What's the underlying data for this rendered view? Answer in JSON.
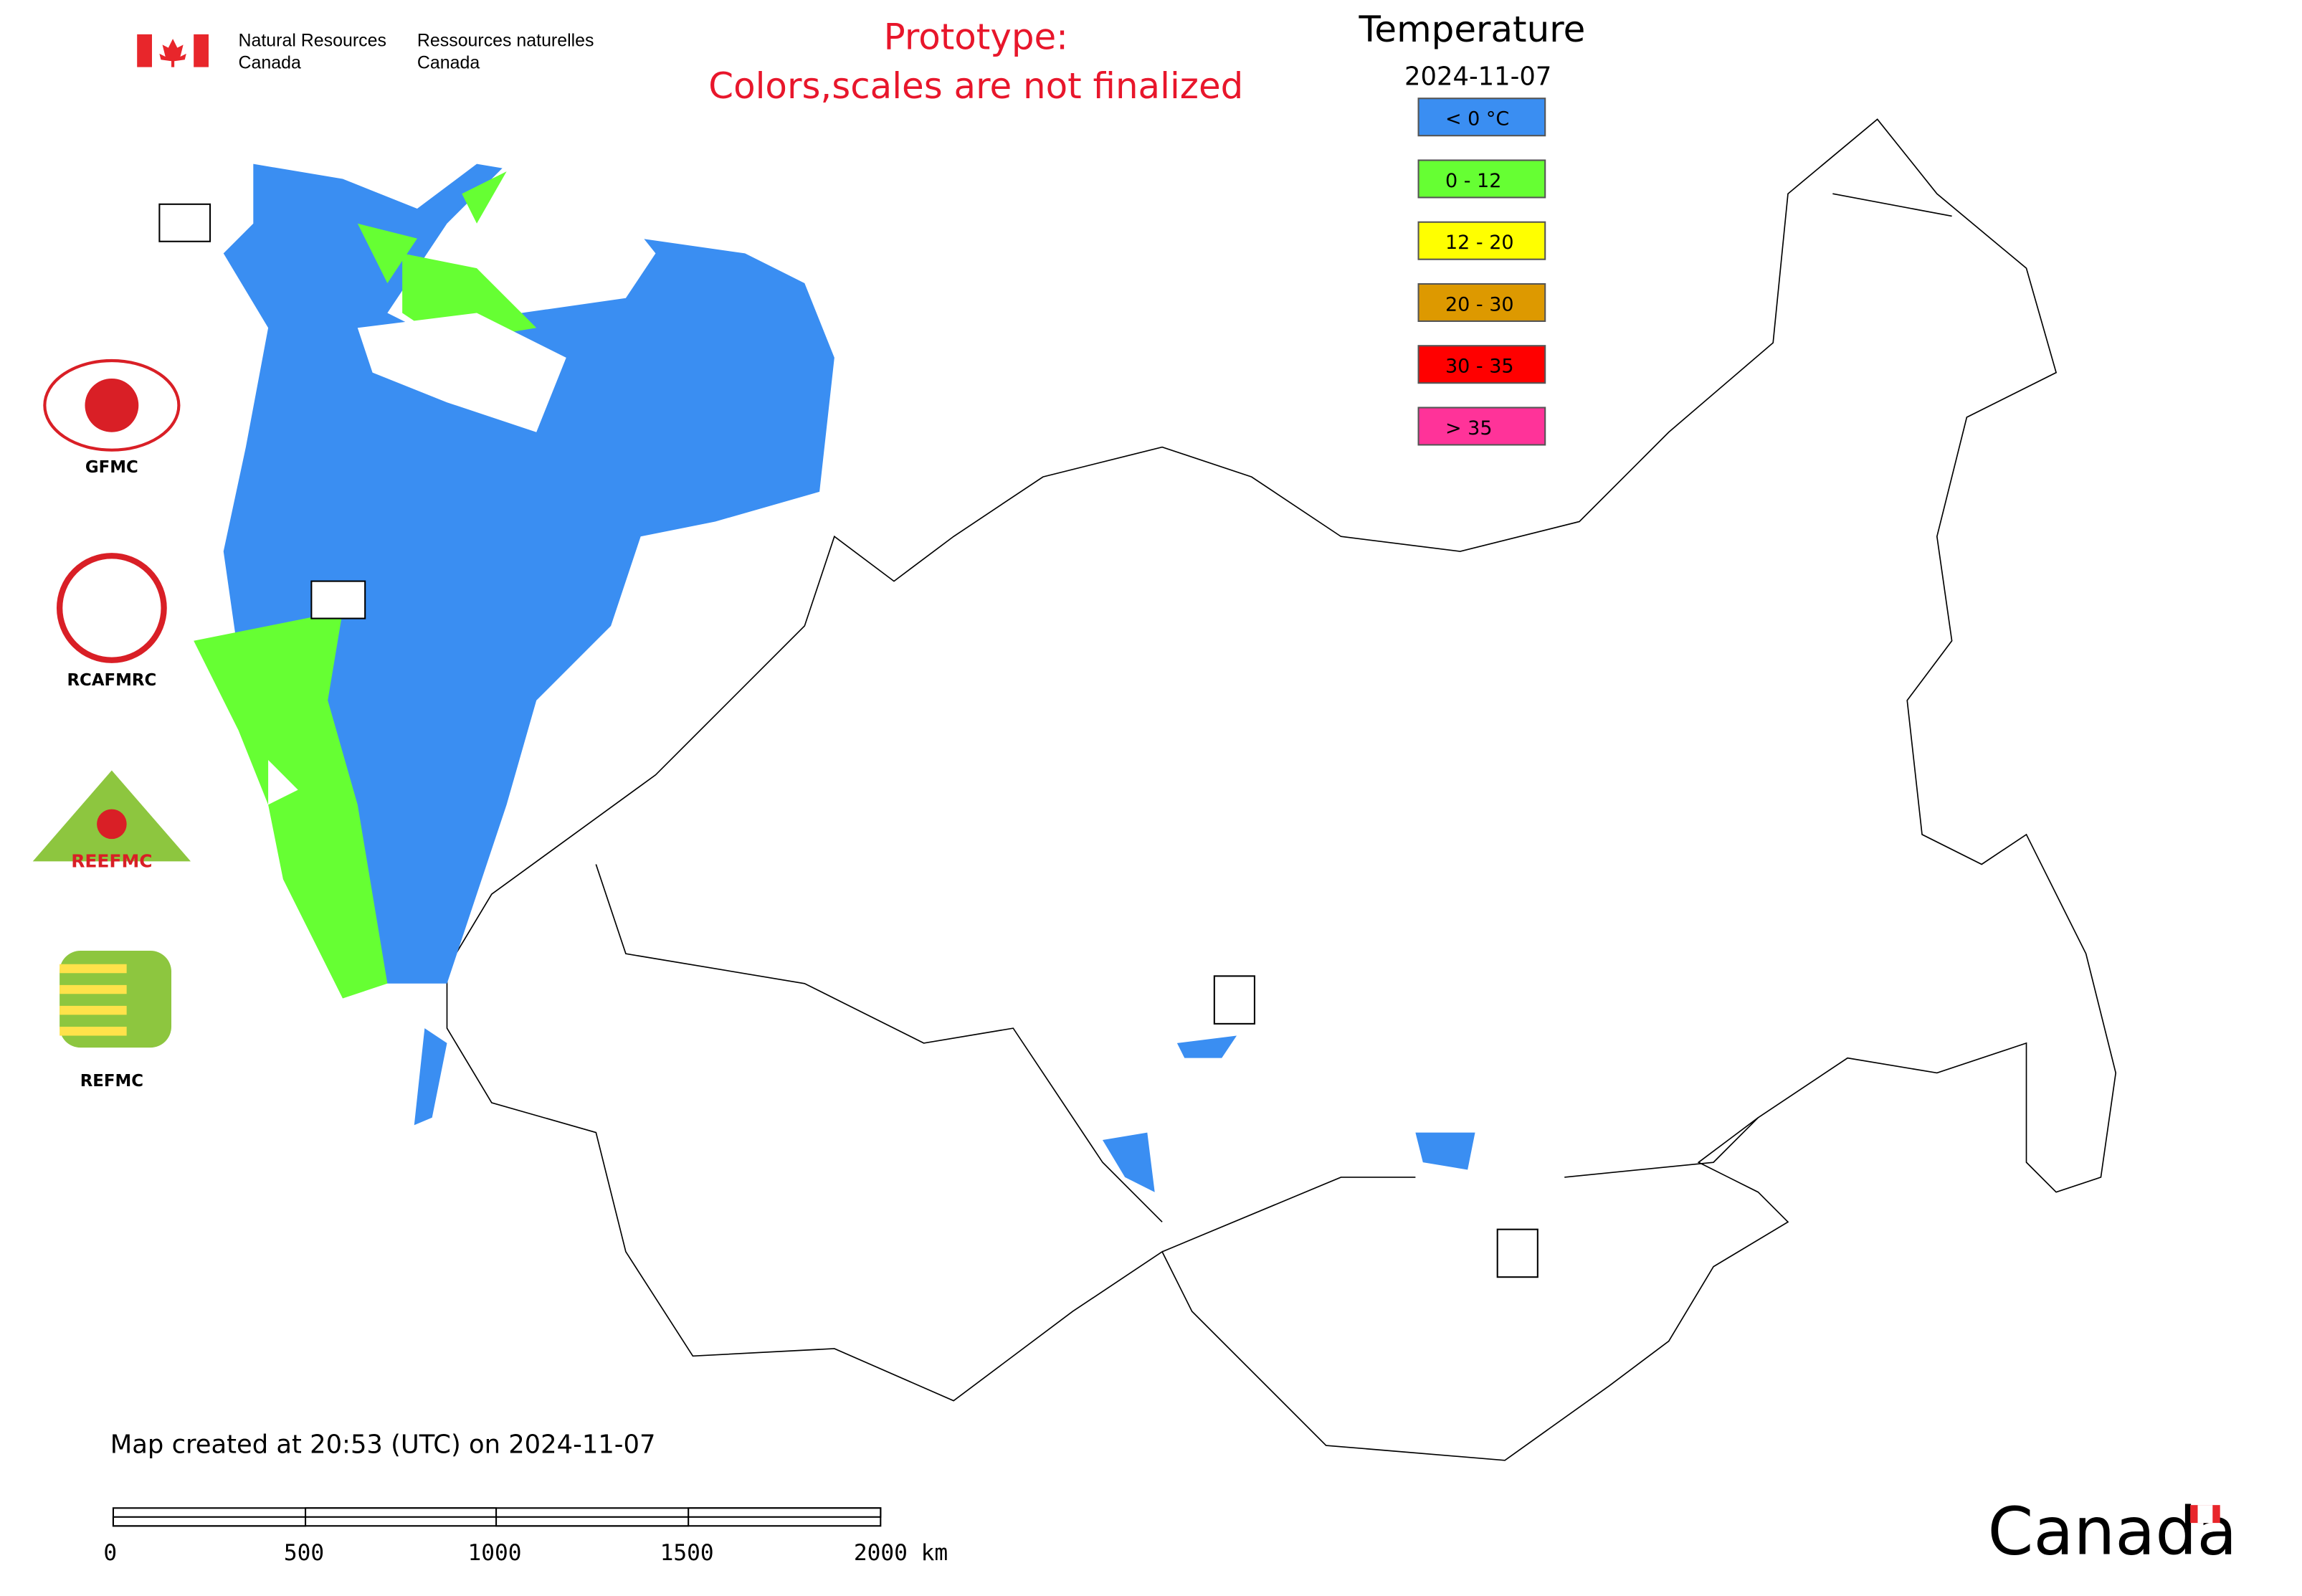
{
  "header": {
    "agency_en_1": "Natural Resources",
    "agency_en_2": "Canada",
    "agency_fr_1": "Ressources naturelles",
    "agency_fr_2": "Canada"
  },
  "notice": [
    "Prototype:",
    "Colors,scales are not finalized"
  ],
  "legend": {
    "title": "Temperature",
    "date": "2024-11-07",
    "items": [
      {
        "label": "< 0 °C",
        "color": "#3a8ef2"
      },
      {
        "label": "0 - 12",
        "color": "#66ff33"
      },
      {
        "label": "12 - 20",
        "color": "#ffff00"
      },
      {
        "label": "20 - 30",
        "color": "#dd9900"
      },
      {
        "label": "30 - 35",
        "color": "#ff0000"
      },
      {
        "label": "> 35",
        "color": "#ff3399"
      }
    ]
  },
  "logos": [
    "GFMC",
    "RCAFMRC",
    "REEFMC",
    "REFMC"
  ],
  "footer": {
    "created": "Map created at 20:53 (UTC) on 2024-11-07",
    "scale": [
      "0",
      "500",
      "1000",
      "1500",
      "2000 km"
    ],
    "wordmark": "Canada"
  }
}
